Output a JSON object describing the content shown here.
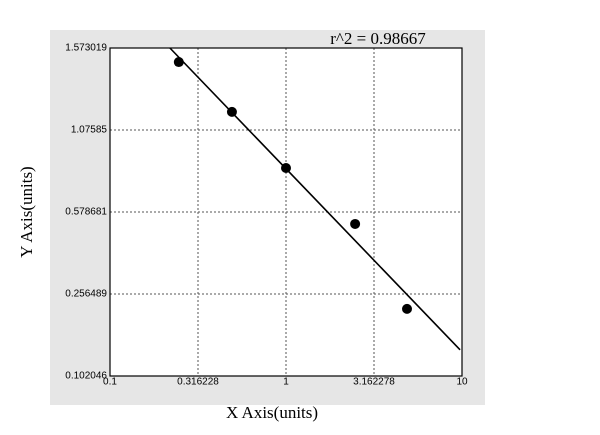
{
  "chart_data": {
    "type": "scatter",
    "annotation": "r^2  = 0.98667",
    "x_label": "X Axis(units)",
    "y_label": "Y Axis(units)",
    "xscale": "log",
    "yscale": "log",
    "xlim": [
      0.1,
      10
    ],
    "xticks": [
      0.1,
      0.316228,
      1,
      3.162278,
      10
    ],
    "ylim": [
      0.102046,
      1.573019
    ],
    "yticks": [
      0.102046,
      0.256489,
      0.578681,
      1.07585,
      1.573019
    ],
    "grid": true,
    "series": [
      {
        "kind": "points",
        "color": "#000000",
        "x": [
          0.246,
          0.493,
          1,
          2.47,
          4.87
        ],
        "values": [
          1.474,
          1.17,
          0.807,
          0.514,
          0.217
        ]
      },
      {
        "kind": "line",
        "color": "#000000",
        "x": [
          0.219,
          9.75
        ],
        "values": [
          1.573019,
          0.137
        ]
      }
    ]
  }
}
